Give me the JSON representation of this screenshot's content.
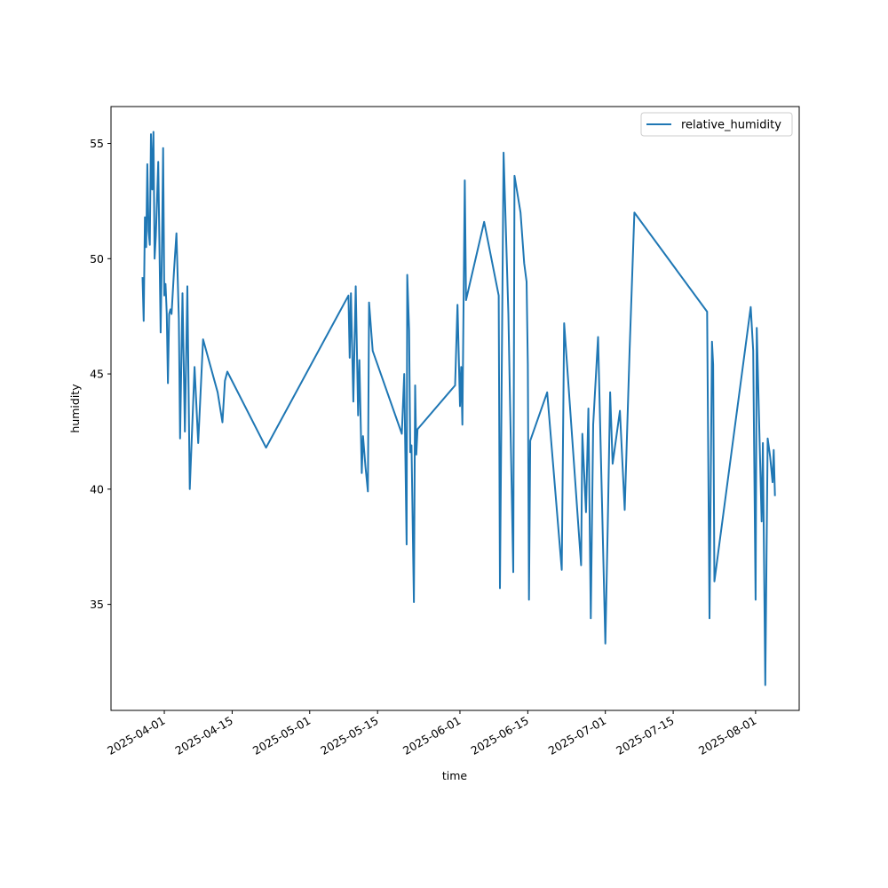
{
  "chart_data": {
    "type": "line",
    "title": "",
    "xlabel": "time",
    "ylabel": "humidity",
    "grid": false,
    "legend_position": "upper right",
    "xlim": [
      "2025-03-21",
      "2025-08-10"
    ],
    "ylim": [
      30.4,
      56.6
    ],
    "x_ticks": [
      "2025-04-01",
      "2025-04-15",
      "2025-05-01",
      "2025-05-15",
      "2025-06-01",
      "2025-06-15",
      "2025-07-01",
      "2025-07-15",
      "2025-08-01"
    ],
    "y_ticks": [
      35,
      40,
      45,
      50,
      55
    ],
    "colors": {
      "series": "#1f77b4"
    },
    "series": [
      {
        "name": "relative_humidity",
        "points": [
          [
            "2025-03-27T12:00",
            49.2
          ],
          [
            "2025-03-27T18:00",
            47.3
          ],
          [
            "2025-03-28T00:00",
            51.8
          ],
          [
            "2025-03-28T06:00",
            50.5
          ],
          [
            "2025-03-28T12:00",
            54.1
          ],
          [
            "2025-03-28T18:00",
            51.2
          ],
          [
            "2025-03-29T00:00",
            50.6
          ],
          [
            "2025-03-29T06:00",
            55.4
          ],
          [
            "2025-03-29T12:00",
            53.0
          ],
          [
            "2025-03-29T18:00",
            55.5
          ],
          [
            "2025-03-30T00:00",
            50.0
          ],
          [
            "2025-03-30T06:00",
            51.0
          ],
          [
            "2025-03-30T12:00",
            52.5
          ],
          [
            "2025-03-30T18:00",
            54.2
          ],
          [
            "2025-03-31T00:00",
            50.4
          ],
          [
            "2025-03-31T06:00",
            46.8
          ],
          [
            "2025-03-31T12:00",
            50.2
          ],
          [
            "2025-03-31T18:00",
            54.8
          ],
          [
            "2025-04-01T00:00",
            48.4
          ],
          [
            "2025-04-01T06:00",
            48.9
          ],
          [
            "2025-04-01T12:00",
            47.6
          ],
          [
            "2025-04-01T18:00",
            44.6
          ],
          [
            "2025-04-02T00:00",
            47.6
          ],
          [
            "2025-04-02T06:00",
            47.8
          ],
          [
            "2025-04-02T12:00",
            47.6
          ],
          [
            "2025-04-03T00:00",
            49.5
          ],
          [
            "2025-04-03T12:00",
            51.1
          ],
          [
            "2025-04-04T00:00",
            47.4
          ],
          [
            "2025-04-04T06:00",
            42.2
          ],
          [
            "2025-04-04T18:00",
            48.5
          ],
          [
            "2025-04-05T06:00",
            42.5
          ],
          [
            "2025-04-05T18:00",
            48.8
          ],
          [
            "2025-04-06T06:00",
            40.0
          ],
          [
            "2025-04-07T06:00",
            45.3
          ],
          [
            "2025-04-08T00:00",
            42.0
          ],
          [
            "2025-04-09T00:00",
            46.5
          ],
          [
            "2025-04-12T00:00",
            44.2
          ],
          [
            "2025-04-13T00:00",
            42.9
          ],
          [
            "2025-04-13T12:00",
            44.7
          ],
          [
            "2025-04-14T00:00",
            45.1
          ],
          [
            "2025-04-22T00:00",
            41.8
          ],
          [
            "2025-05-09T00:00",
            48.4
          ],
          [
            "2025-05-09T06:00",
            45.7
          ],
          [
            "2025-05-09T12:00",
            48.5
          ],
          [
            "2025-05-10T00:00",
            43.8
          ],
          [
            "2025-05-10T12:00",
            48.8
          ],
          [
            "2025-05-11T00:00",
            43.2
          ],
          [
            "2025-05-11T06:00",
            45.6
          ],
          [
            "2025-05-11T18:00",
            40.7
          ],
          [
            "2025-05-12T00:00",
            42.3
          ],
          [
            "2025-05-12T12:00",
            41.0
          ],
          [
            "2025-05-13T00:00",
            39.9
          ],
          [
            "2025-05-13T06:00",
            48.1
          ],
          [
            "2025-05-14T00:00",
            46.0
          ],
          [
            "2025-05-20T00:00",
            42.4
          ],
          [
            "2025-05-20T12:00",
            45.0
          ],
          [
            "2025-05-21T00:00",
            37.6
          ],
          [
            "2025-05-21T03:00",
            49.3
          ],
          [
            "2025-05-21T12:00",
            46.9
          ],
          [
            "2025-05-21T18:00",
            41.6
          ],
          [
            "2025-05-22T00:00",
            41.9
          ],
          [
            "2025-05-22T12:00",
            35.1
          ],
          [
            "2025-05-22T18:00",
            44.5
          ],
          [
            "2025-05-23T00:00",
            41.5
          ],
          [
            "2025-05-23T06:00",
            42.6
          ],
          [
            "2025-05-31T00:00",
            44.5
          ],
          [
            "2025-05-31T12:00",
            48.0
          ],
          [
            "2025-06-01T00:00",
            43.6
          ],
          [
            "2025-06-01T06:00",
            45.3
          ],
          [
            "2025-06-01T12:00",
            42.8
          ],
          [
            "2025-06-02T00:00",
            53.4
          ],
          [
            "2025-06-02T06:00",
            48.2
          ],
          [
            "2025-06-06T00:00",
            51.6
          ],
          [
            "2025-06-09T00:00",
            48.4
          ],
          [
            "2025-06-09T06:00",
            35.7
          ],
          [
            "2025-06-10T00:00",
            54.6
          ],
          [
            "2025-06-11T00:00",
            47.6
          ],
          [
            "2025-06-12T00:00",
            36.4
          ],
          [
            "2025-06-12T06:00",
            53.6
          ],
          [
            "2025-06-13T12:00",
            52.0
          ],
          [
            "2025-06-14T06:00",
            49.8
          ],
          [
            "2025-06-14T18:00",
            49.0
          ],
          [
            "2025-06-15T00:00",
            45.4
          ],
          [
            "2025-06-15T06:00",
            35.2
          ],
          [
            "2025-06-15T12:00",
            42.1
          ],
          [
            "2025-06-19T00:00",
            44.2
          ],
          [
            "2025-06-22T00:00",
            36.5
          ],
          [
            "2025-06-22T12:00",
            47.2
          ],
          [
            "2025-06-26T00:00",
            36.7
          ],
          [
            "2025-06-26T06:00",
            42.4
          ],
          [
            "2025-06-27T00:00",
            39.0
          ],
          [
            "2025-06-27T12:00",
            43.5
          ],
          [
            "2025-06-28T00:00",
            34.4
          ],
          [
            "2025-06-28T12:00",
            42.8
          ],
          [
            "2025-06-29T12:00",
            46.6
          ],
          [
            "2025-07-01T00:00",
            33.3
          ],
          [
            "2025-07-01T12:00",
            38.4
          ],
          [
            "2025-07-02T00:00",
            44.2
          ],
          [
            "2025-07-02T12:00",
            41.1
          ],
          [
            "2025-07-04T00:00",
            43.4
          ],
          [
            "2025-07-05T00:00",
            39.1
          ],
          [
            "2025-07-06T00:00",
            46.0
          ],
          [
            "2025-07-07T00:00",
            52.0
          ],
          [
            "2025-07-22T00:00",
            47.7
          ],
          [
            "2025-07-22T12:00",
            34.4
          ],
          [
            "2025-07-23T00:00",
            46.4
          ],
          [
            "2025-07-23T06:00",
            45.4
          ],
          [
            "2025-07-23T12:00",
            36.0
          ],
          [
            "2025-07-31T00:00",
            47.9
          ],
          [
            "2025-07-31T12:00",
            46.0
          ],
          [
            "2025-08-01T00:00",
            35.2
          ],
          [
            "2025-08-01T06:00",
            47.0
          ],
          [
            "2025-08-02T06:00",
            38.6
          ],
          [
            "2025-08-02T12:00",
            42.0
          ],
          [
            "2025-08-03T00:00",
            31.5
          ],
          [
            "2025-08-03T12:00",
            42.2
          ],
          [
            "2025-08-04T00:00",
            41.4
          ],
          [
            "2025-08-04T12:00",
            40.3
          ],
          [
            "2025-08-04T18:00",
            41.7
          ],
          [
            "2025-08-05T00:00",
            39.7
          ]
        ]
      }
    ]
  }
}
